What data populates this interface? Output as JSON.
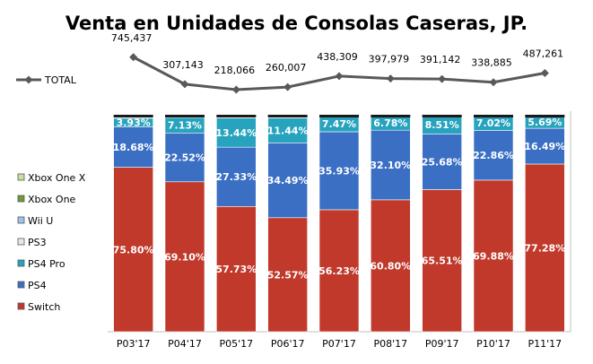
{
  "chart_data": {
    "type": "bar",
    "stacked": true,
    "title": "Venta en Unidades de Consolas Caseras, JP.",
    "categories": [
      "P03'17",
      "P04'17",
      "P05'17",
      "P06'17",
      "P07'17",
      "P08'17",
      "P09'17",
      "P10'17",
      "P11'17"
    ],
    "ylim": [
      0,
      100
    ],
    "grid": false,
    "legend_position": "left",
    "series": [
      {
        "name": "Switch",
        "color": "#c0392b",
        "values": [
          75.8,
          69.1,
          57.73,
          52.57,
          56.23,
          60.8,
          65.51,
          69.88,
          77.28
        ],
        "labels": [
          "75.80%",
          "69.10%",
          "57.73%",
          "52.57%",
          "56.23%",
          "60.80%",
          "65.51%",
          "69.88%",
          "77.28%"
        ]
      },
      {
        "name": "PS4",
        "color": "#3a6fc4",
        "values": [
          18.68,
          22.52,
          27.33,
          34.49,
          35.93,
          32.1,
          25.68,
          22.86,
          16.49
        ],
        "labels": [
          "18.68%",
          "22.52%",
          "27.33%",
          "34.49%",
          "35.93%",
          "32.10%",
          "25.68%",
          "22.86%",
          "16.49%"
        ]
      },
      {
        "name": "PS4 Pro",
        "color": "#27a3bd",
        "values": [
          3.93,
          7.13,
          13.44,
          11.44,
          7.47,
          6.78,
          8.51,
          7.02,
          5.69
        ],
        "labels": [
          "3.93%",
          "7.13%",
          "13.44%",
          "11.44%",
          "7.47%",
          "6.78%",
          "8.51%",
          "7.02%",
          "5.69%"
        ]
      },
      {
        "name": "PS3",
        "color": "#e8e8e8",
        "values": [
          0.8,
          0.6,
          0.8,
          0.8,
          0.2,
          0.2,
          0.2,
          0.2,
          0.2
        ]
      },
      {
        "name": "Wii U",
        "color": "#9dc3e6",
        "values": [
          0.5,
          0.4,
          0.5,
          0.5,
          0.1,
          0.1,
          0.1,
          0.1,
          0.1
        ]
      },
      {
        "name": "Xbox One",
        "color": "#6f9a3a",
        "values": [
          0.2,
          0.2,
          0.2,
          0.2,
          0.05,
          0.05,
          0.05,
          0.05,
          0.05
        ]
      },
      {
        "name": "Xbox One X",
        "color": "#c6e0a0",
        "values": [
          0,
          0,
          0,
          0,
          0,
          0,
          0,
          0,
          0.2
        ]
      }
    ],
    "total": {
      "name": "TOTAL",
      "color": "#595959",
      "values": [
        745437,
        307143,
        218066,
        260007,
        438309,
        397979,
        391142,
        338885,
        487261
      ],
      "labels": [
        "745,437",
        "307,143",
        "218,066",
        "260,007",
        "438,309",
        "397,979",
        "391,142",
        "338,885",
        "487,261"
      ]
    }
  }
}
